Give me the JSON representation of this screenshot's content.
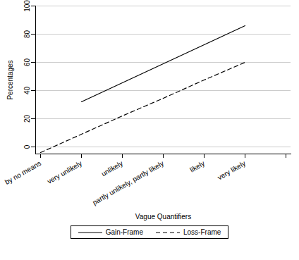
{
  "chart_data": {
    "type": "line",
    "xlabel": "Vague Quantifiers",
    "ylabel": "Percentages",
    "categories": [
      "by no means",
      "very unlikely",
      "unlikely",
      "partly unlikely, partly likely",
      "likely",
      "very likely",
      null
    ],
    "series": [
      {
        "name": "Gain-Frame",
        "color": "#000000",
        "line_style": "solid",
        "values": [
          null,
          32,
          45.5,
          59,
          72.5,
          86,
          null
        ]
      },
      {
        "name": "Loss-Frame",
        "color": "#000000",
        "line_style": "dashed",
        "values": [
          -4,
          9,
          22,
          34.5,
          47.5,
          60,
          null
        ]
      }
    ],
    "ylim": [
      -5,
      100
    ],
    "yticks": [
      0,
      20,
      40,
      60,
      80,
      100
    ],
    "grid": true,
    "legend": "bottom"
  }
}
